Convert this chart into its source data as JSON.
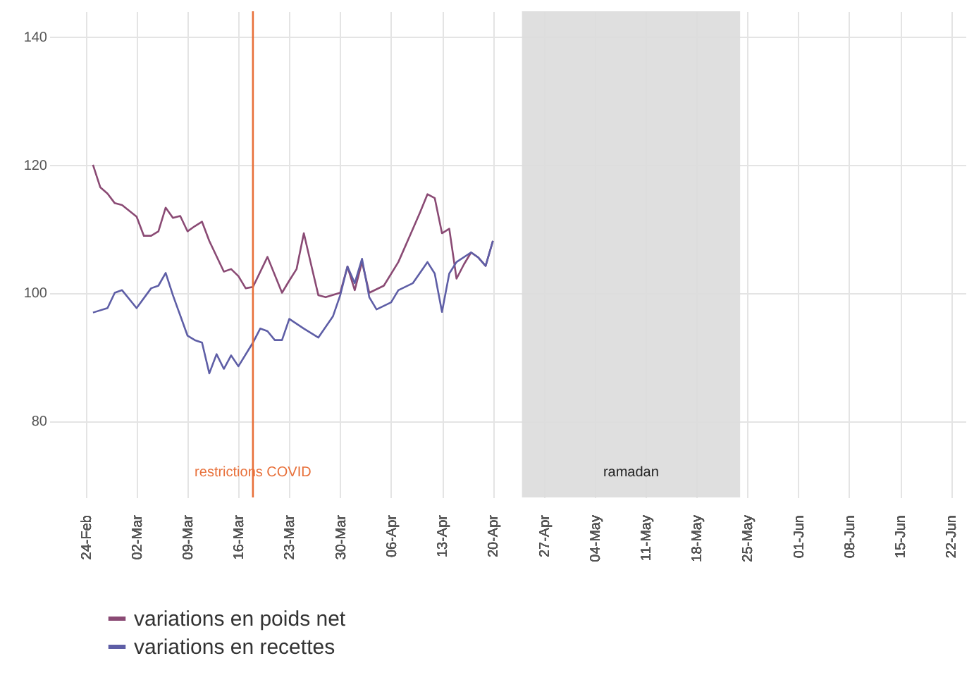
{
  "chart_data": {
    "type": "line",
    "x": [
      "--02-25",
      "--02-26",
      "--02-27",
      "--02-28",
      "--02-29",
      "--03-02",
      "--03-03",
      "--03-04",
      "--03-05",
      "--03-06",
      "--03-07",
      "--03-08",
      "--03-09",
      "--03-10",
      "--03-11",
      "--03-12",
      "--03-14",
      "--03-15",
      "--03-16",
      "--03-17",
      "--03-18",
      "--03-20",
      "--03-22",
      "--03-23",
      "--03-24",
      "--03-25",
      "--03-26",
      "--03-27",
      "--03-28",
      "--03-30",
      "--03-31",
      "--04-01",
      "--04-02",
      "--04-03",
      "--04-05",
      "--04-07",
      "--04-09",
      "--04-10",
      "--04-11",
      "--04-12",
      "--04-13",
      "--04-14",
      "--04-15",
      "--04-16",
      "--04-17",
      "--04-18",
      "--04-19",
      "--04-20"
    ],
    "series": [
      {
        "name": "variations en poids net",
        "color": "#8a4a74",
        "values": [
          120,
          116.5,
          115.5,
          114,
          113.7,
          111.9,
          108.9,
          108.9,
          109.6,
          113.3,
          111.7,
          112,
          109.6,
          110.4,
          111.1,
          108.1,
          103.3,
          103.7,
          102.6,
          100.7,
          100.9,
          105.6,
          100,
          101.9,
          103.7,
          109.3,
          104.4,
          99.6,
          99.3,
          100,
          104.1,
          100.4,
          104.8,
          100,
          101.1,
          104.8,
          110,
          112.6,
          115.4,
          114.8,
          109.3,
          110,
          102.2,
          104.4,
          106.3,
          105.5,
          104.2,
          108.1
        ]
      },
      {
        "name": "variations en recettes",
        "color": "#5e5ea6",
        "x": [
          "--02-25",
          "--02-27",
          "--02-28",
          "--02-29",
          "--03-02",
          "--03-04",
          "--03-05",
          "--03-06",
          "--03-07",
          "--03-09",
          "--03-10",
          "--03-11",
          "--03-12",
          "--03-13",
          "--03-14",
          "--03-15",
          "--03-16",
          "--03-18",
          "--03-19",
          "--03-20",
          "--03-21",
          "--03-22",
          "--03-23",
          "--03-25",
          "--03-27",
          "--03-29",
          "--03-30",
          "--03-31",
          "--04-01",
          "--04-02",
          "--04-03",
          "--04-04",
          "--04-06",
          "--04-07",
          "--04-09",
          "--04-11",
          "--04-12",
          "--04-13",
          "--04-14",
          "--04-15",
          "--04-17",
          "--04-18",
          "--04-19",
          "--04-20"
        ],
        "values": [
          96.9,
          97.6,
          100,
          100.4,
          97.6,
          100.7,
          101.1,
          103.1,
          99.6,
          93.3,
          92.6,
          92.2,
          87.4,
          90.4,
          88.1,
          90.2,
          88.5,
          92.2,
          94.4,
          94,
          92.6,
          92.6,
          95.9,
          94.4,
          93,
          96.3,
          99.6,
          104.1,
          101.5,
          105.3,
          99.3,
          97.4,
          98.5,
          100.4,
          101.5,
          104.8,
          103,
          97,
          103,
          104.8,
          106.3,
          105.5,
          104.2,
          108.1
        ]
      }
    ],
    "xlim": [
      "--02-19",
      "--06-24"
    ],
    "xticks": [
      {
        "value": "--02-24",
        "label": "24-Feb"
      },
      {
        "value": "--03-02",
        "label": "02-Mar"
      },
      {
        "value": "--03-09",
        "label": "09-Mar"
      },
      {
        "value": "--03-16",
        "label": "16-Mar"
      },
      {
        "value": "--03-23",
        "label": "23-Mar"
      },
      {
        "value": "--03-30",
        "label": "30-Mar"
      },
      {
        "value": "--04-06",
        "label": "06-Apr"
      },
      {
        "value": "--04-13",
        "label": "13-Apr"
      },
      {
        "value": "--04-20",
        "label": "20-Apr"
      },
      {
        "value": "--04-27",
        "label": "27-Apr"
      },
      {
        "value": "--05-04",
        "label": "04-May"
      },
      {
        "value": "--05-11",
        "label": "11-May"
      },
      {
        "value": "--05-18",
        "label": "18-May"
      },
      {
        "value": "--05-25",
        "label": "25-May"
      },
      {
        "value": "--06-01",
        "label": "01-Jun"
      },
      {
        "value": "--06-08",
        "label": "08-Jun"
      },
      {
        "value": "--06-15",
        "label": "15-Jun"
      },
      {
        "value": "--06-22",
        "label": "22-Jun"
      }
    ],
    "ylim": [
      68,
      144
    ],
    "yticks": [
      80,
      100,
      120,
      140
    ],
    "grid": true,
    "legend": "bottom",
    "line_style": "solid",
    "ref_lines": [
      {
        "axis": "x",
        "value": "--03-18",
        "label": "restrictions COVID",
        "color": "#e8703a"
      }
    ],
    "bands": [
      {
        "axis": "x",
        "from": "--04-24",
        "to": "--05-24",
        "label": "ramadan",
        "color": "#dcdcdc"
      }
    ]
  }
}
